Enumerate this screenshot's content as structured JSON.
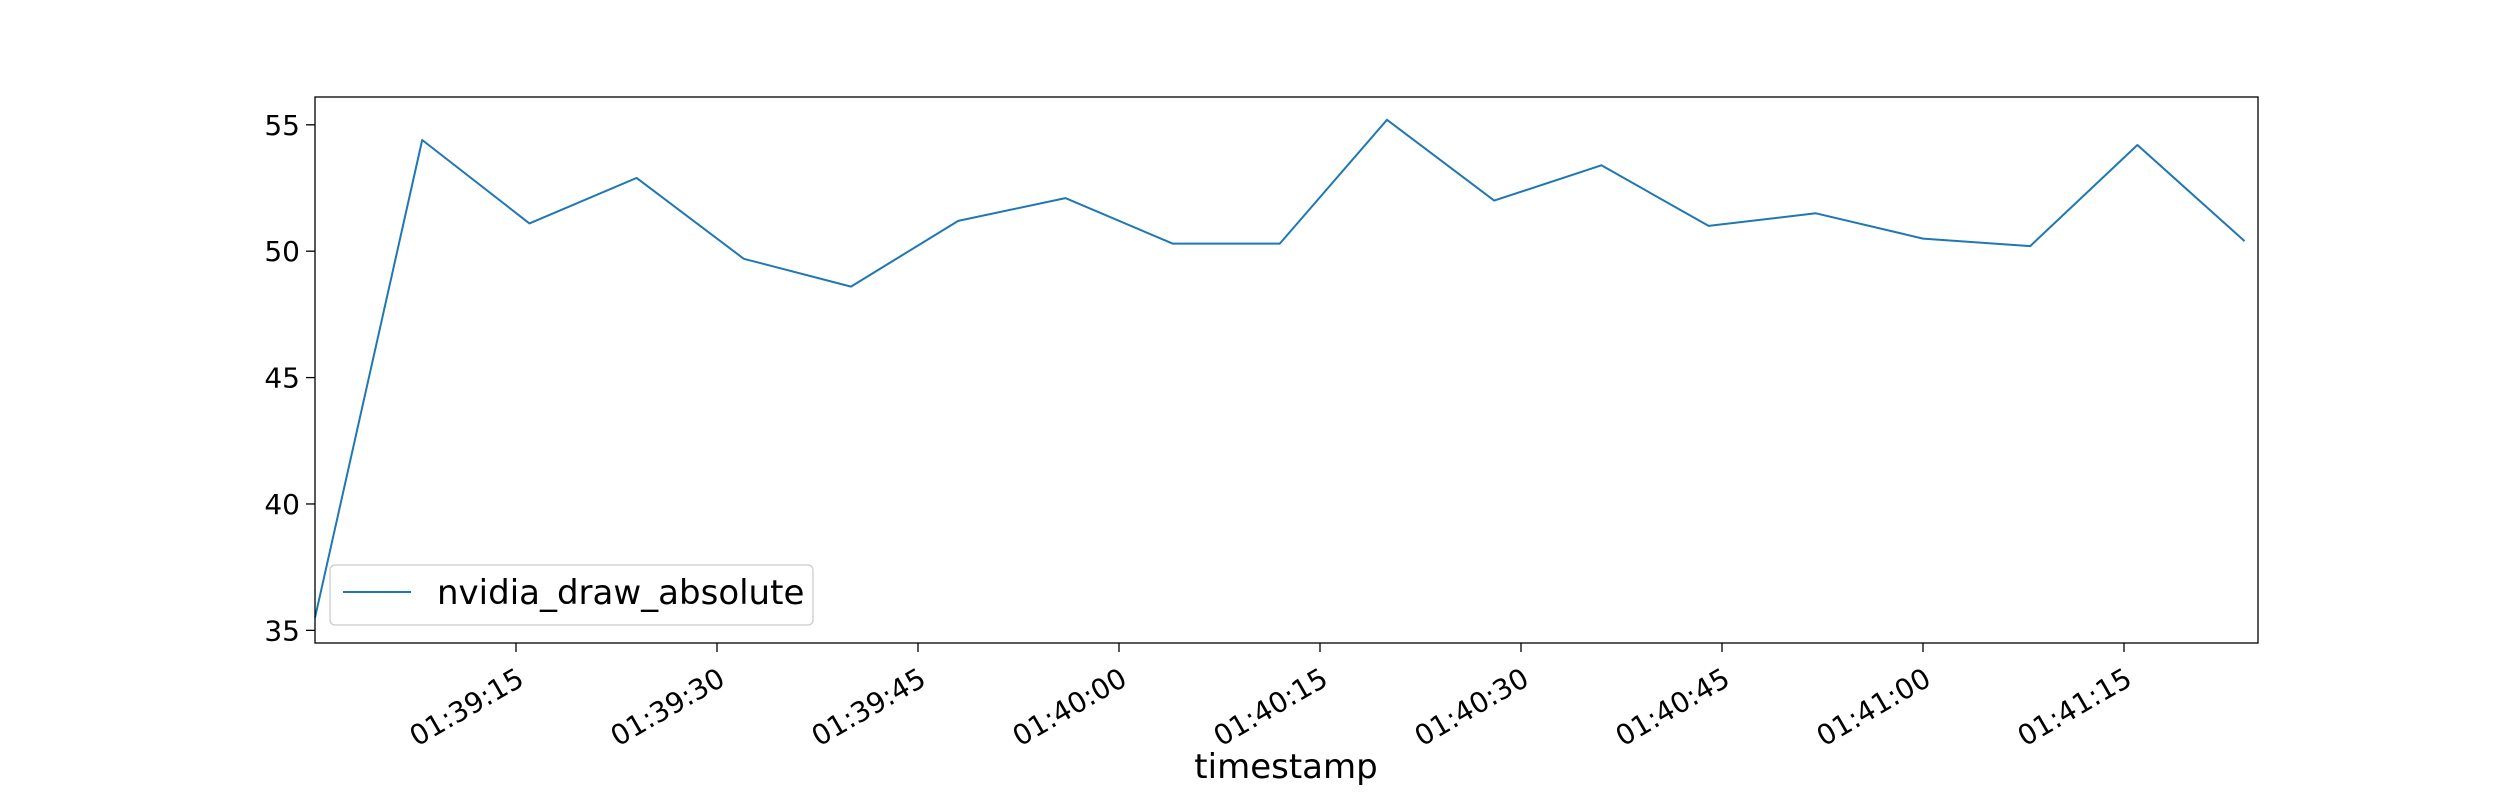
{
  "chart_data": {
    "type": "line",
    "title": "",
    "xlabel": "timestamp",
    "ylabel": "",
    "x_ticks": [
      "01:39:15",
      "01:39:30",
      "01:39:45",
      "01:40:00",
      "01:40:15",
      "01:40:30",
      "01:40:45",
      "01:41:00",
      "01:41:15"
    ],
    "y_ticks": [
      35,
      40,
      45,
      50,
      55
    ],
    "xlim": [
      "01:39:00",
      "01:41:25"
    ],
    "ylim": [
      34.5,
      56.1
    ],
    "legend_position": "lower-left",
    "grid": false,
    "series": [
      {
        "name": "nvidia_draw_absolute",
        "color": "#1f77b4",
        "points": [
          {
            "x": "01:39:00",
            "y": 35.5
          },
          {
            "x": "01:39:08",
            "y": 54.4
          },
          {
            "x": "01:39:16",
            "y": 51.1
          },
          {
            "x": "01:39:24",
            "y": 52.9
          },
          {
            "x": "01:39:32",
            "y": 49.7
          },
          {
            "x": "01:39:40",
            "y": 48.6
          },
          {
            "x": "01:39:48",
            "y": 51.2
          },
          {
            "x": "01:39:56",
            "y": 52.1
          },
          {
            "x": "01:40:04",
            "y": 50.3
          },
          {
            "x": "01:40:12",
            "y": 50.3
          },
          {
            "x": "01:40:20",
            "y": 55.2
          },
          {
            "x": "01:40:28",
            "y": 52.0
          },
          {
            "x": "01:40:36",
            "y": 53.4
          },
          {
            "x": "01:40:44",
            "y": 51.0
          },
          {
            "x": "01:40:52",
            "y": 51.5
          },
          {
            "x": "01:41:00",
            "y": 50.5
          },
          {
            "x": "01:41:08",
            "y": 50.2
          },
          {
            "x": "01:41:16",
            "y": 54.2
          },
          {
            "x": "01:41:24",
            "y": 50.4
          }
        ]
      }
    ]
  }
}
